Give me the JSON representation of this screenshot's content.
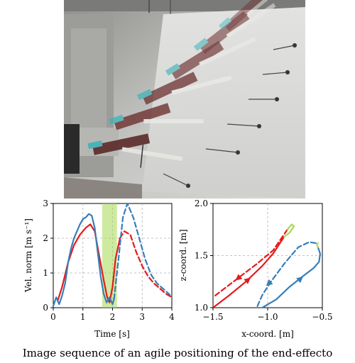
{
  "figure": {
    "caption": "Image sequence of an agile positioning of the end-effecto"
  },
  "photo": {
    "description_icon": "drone-manipulator-sequence-photo"
  },
  "chart_data": [
    {
      "type": "line",
      "xlabel": "Time [s]",
      "ylabel": "Vel. norm [m s⁻¹]",
      "xlim": [
        0,
        4
      ],
      "ylim": [
        0,
        3
      ],
      "xticks": [
        "0",
        "1",
        "2",
        "3",
        "4"
      ],
      "yticks": [
        "0",
        "1",
        "2",
        "3"
      ],
      "grid": true,
      "highlight": {
        "x_range": [
          1.65,
          2.15
        ],
        "color": "#a6d854"
      },
      "series": [
        {
          "style": "solid",
          "color": "#e41a1c",
          "x": [
            0.15,
            0.3,
            0.5,
            0.7,
            0.9,
            1.1,
            1.25,
            1.4,
            1.55,
            1.7,
            1.82,
            1.9,
            2.0,
            2.1,
            2.25
          ],
          "y": [
            0.2,
            0.6,
            1.3,
            1.8,
            2.1,
            2.3,
            2.4,
            2.2,
            1.5,
            0.8,
            0.3,
            0.15,
            0.6,
            1.4,
            2.0
          ]
        },
        {
          "style": "dashed",
          "color": "#e41a1c",
          "x": [
            2.25,
            2.4,
            2.6,
            2.8,
            3.0,
            3.2,
            3.4,
            3.6,
            3.8,
            4.0
          ],
          "y": [
            2.0,
            2.2,
            2.1,
            1.6,
            1.2,
            0.9,
            0.7,
            0.55,
            0.4,
            0.3
          ]
        },
        {
          "style": "solid",
          "color": "#377eb8",
          "x": [
            0,
            0.1,
            0.2,
            0.3,
            0.4,
            0.5,
            0.6,
            0.7,
            0.8,
            0.9,
            1.0,
            1.1,
            1.2,
            1.3,
            1.4,
            1.5,
            1.6,
            1.7,
            1.8,
            1.9,
            2.0,
            2.05
          ],
          "y": [
            0.05,
            0.3,
            0.1,
            0.35,
            0.7,
            1.3,
            1.7,
            2.0,
            2.2,
            2.4,
            2.55,
            2.6,
            2.7,
            2.65,
            2.3,
            1.6,
            0.9,
            0.4,
            0.15,
            0.3,
            0.1,
            0.25
          ],
          "jagged": true
        },
        {
          "style": "dashed",
          "color": "#377eb8",
          "x": [
            2.05,
            2.2,
            2.35,
            2.5,
            2.7,
            2.9,
            3.1,
            3.3,
            3.5,
            3.7,
            3.9,
            4.0
          ],
          "y": [
            0.25,
            1.4,
            2.6,
            3.0,
            2.6,
            2.0,
            1.4,
            0.95,
            0.7,
            0.55,
            0.4,
            0.3
          ]
        }
      ]
    },
    {
      "type": "line",
      "xlabel": "x-coord. [m]",
      "ylabel": "z-coord. [m]",
      "xlim": [
        -1.5,
        -0.5
      ],
      "ylim": [
        1.0,
        2.0
      ],
      "xticks": [
        "−1.5",
        "−1.0",
        "−0.5"
      ],
      "yticks": [
        "1.0",
        "1.5",
        "2.0"
      ],
      "grid": true,
      "series": [
        {
          "style": "solid",
          "color": "#e41a1c",
          "x": [
            -1.5,
            -1.35,
            -1.2,
            -1.05,
            -0.95,
            -0.85
          ],
          "y": [
            1.0,
            1.12,
            1.25,
            1.4,
            1.52,
            1.68
          ]
        },
        {
          "style": "dashed",
          "color": "#e41a1c",
          "x": [
            -0.82,
            -0.95,
            -1.1,
            -1.25,
            -1.4,
            -1.5
          ],
          "y": [
            1.75,
            1.55,
            1.42,
            1.3,
            1.18,
            1.1
          ]
        },
        {
          "style": "solid",
          "color": "#a6d854",
          "x": [
            -0.85,
            -0.8,
            -0.76,
            -0.78,
            -0.82
          ],
          "y": [
            1.68,
            1.72,
            1.78,
            1.8,
            1.75
          ]
        },
        {
          "style": "solid",
          "color": "#377eb8",
          "x": [
            -1.05,
            -0.92,
            -0.8,
            -0.68,
            -0.58,
            -0.53,
            -0.52,
            -0.54
          ],
          "y": [
            1.0,
            1.08,
            1.2,
            1.3,
            1.38,
            1.44,
            1.52,
            1.58
          ]
        },
        {
          "style": "solid",
          "color": "#a6d854",
          "x": [
            -0.54,
            -0.55,
            -0.54
          ],
          "y": [
            1.58,
            1.6,
            1.62
          ]
        },
        {
          "style": "dashed",
          "color": "#377eb8",
          "x": [
            -0.56,
            -0.62,
            -0.72,
            -0.85,
            -0.97,
            -1.05,
            -1.1
          ],
          "y": [
            1.62,
            1.63,
            1.58,
            1.42,
            1.25,
            1.12,
            1.0
          ]
        }
      ],
      "arrows": [
        {
          "color": "#e41a1c",
          "at": [
            -1.2,
            1.25
          ],
          "dir": "up-right"
        },
        {
          "color": "#e41a1c",
          "at": [
            -1.25,
            1.3
          ],
          "dir": "down-left"
        },
        {
          "color": "#377eb8",
          "at": [
            -0.72,
            1.26
          ],
          "dir": "up-right"
        },
        {
          "color": "#377eb8",
          "at": [
            -0.97,
            1.25
          ],
          "dir": "down-left"
        }
      ]
    }
  ]
}
